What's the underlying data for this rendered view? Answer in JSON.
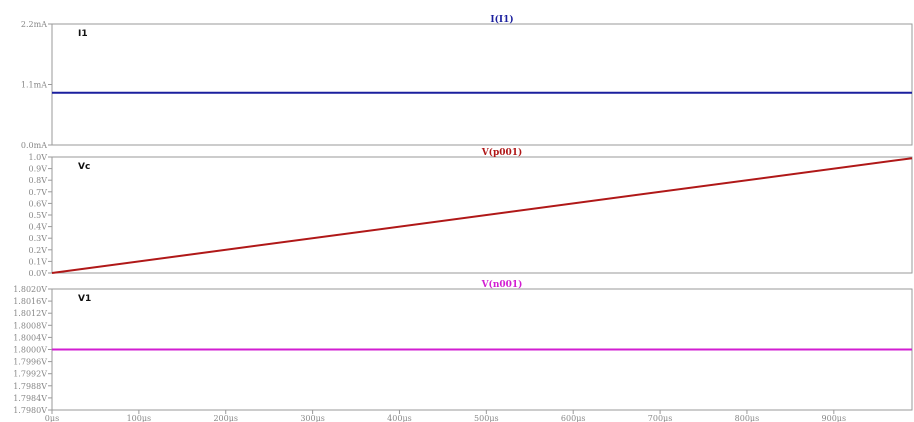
{
  "chart_data": [
    {
      "type": "line",
      "title": "I(I1)",
      "label": "I1",
      "yticks": [
        "2.2mA",
        "1.1mA",
        "0.0mA"
      ],
      "ylim": [
        0,
        2.2
      ],
      "color": "#1a1f9e",
      "series": [
        {
          "name": "I(I1)",
          "x": [
            0,
            990
          ],
          "y": [
            0.95,
            0.95
          ]
        }
      ]
    },
    {
      "type": "line",
      "title": "V(p001)",
      "label": "Vc",
      "yticks": [
        "1.0V",
        "0.9V",
        "0.8V",
        "0.7V",
        "0.6V",
        "0.5V",
        "0.4V",
        "0.3V",
        "0.2V",
        "0.1V",
        "0.0V"
      ],
      "ylim": [
        0,
        1.0
      ],
      "color": "#b01818",
      "series": [
        {
          "name": "V(p001)",
          "x": [
            0,
            990
          ],
          "y": [
            0.0,
            0.99
          ]
        }
      ]
    },
    {
      "type": "line",
      "title": "V(n001)",
      "label": "V1",
      "yticks": [
        "1.8020V",
        "1.8016V",
        "1.8012V",
        "1.8008V",
        "1.8004V",
        "1.8000V",
        "1.7996V",
        "1.7992V",
        "1.7988V",
        "1.7984V",
        "1.7980V"
      ],
      "ylim": [
        1.798,
        1.802
      ],
      "color": "#d21ed2",
      "series": [
        {
          "name": "V(n001)",
          "x": [
            0,
            990
          ],
          "y": [
            1.8,
            1.8
          ]
        }
      ]
    }
  ],
  "x_axis": {
    "ticks": [
      "0µs",
      "100µs",
      "200µs",
      "300µs",
      "400µs",
      "500µs",
      "600µs",
      "700µs",
      "800µs",
      "900µs"
    ],
    "xlim": [
      0,
      990
    ]
  }
}
